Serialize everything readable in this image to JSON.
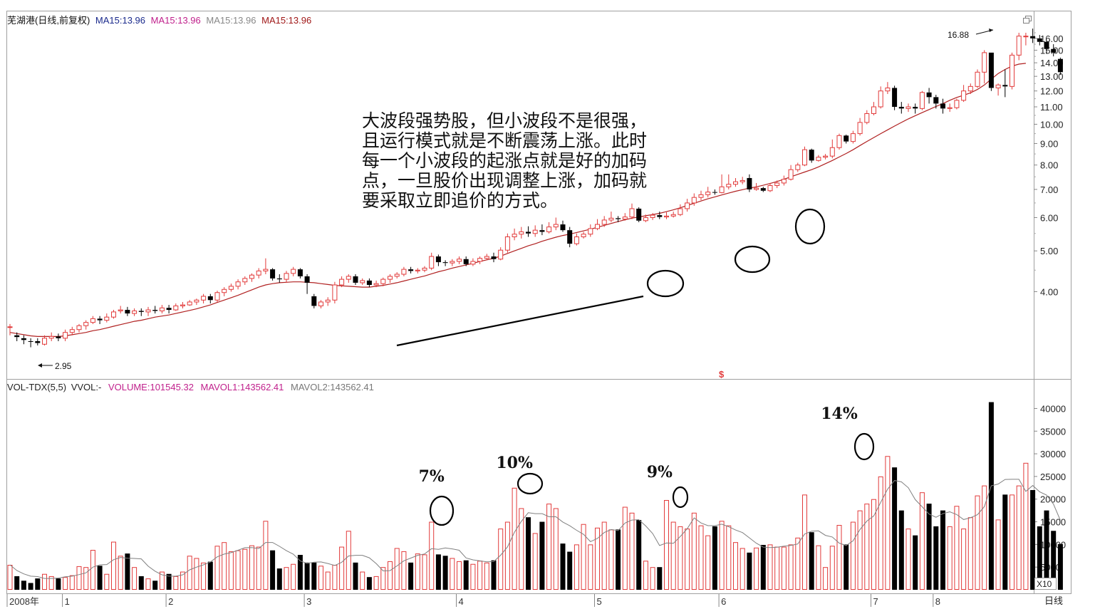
{
  "price_header": {
    "stock": "芜湖港(日线,前复权)",
    "ma_items": [
      {
        "text": "MA15:13.96",
        "color": "#1a2a8c"
      },
      {
        "text": "MA15:13.96",
        "color": "#c0208c"
      },
      {
        "text": "MA15:13.96",
        "color": "#888888"
      },
      {
        "text": "MA15:13.96",
        "color": "#a01818"
      }
    ]
  },
  "vol_header": {
    "items": [
      {
        "text": "VOL-TDX(5,5)",
        "color": "#222222"
      },
      {
        "text": "VVOL:-",
        "color": "#222222"
      },
      {
        "text": "VOLUME:101545.32",
        "color": "#c0208c"
      },
      {
        "text": "MAVOL1:143562.41",
        "color": "#c0208c"
      },
      {
        "text": "MAVOL2:143562.41",
        "color": "#777777"
      }
    ]
  },
  "annotation_text": "大波段强势股，但小波段不是很强，且运行模式就是不断震荡上涨。此时每一个小波段的起涨点就是好的加码点，一旦股价出现调整上涨，加码就要采取立即追价的方式。",
  "max_label": "16.88",
  "min_label": "2.95",
  "dollar_marker": "$",
  "vol_unit": "X10",
  "period_label": "日线",
  "colors": {
    "up": "#e23a3a",
    "down": "#000000",
    "ma": "#b02020",
    "frame": "#a0a0a0",
    "mavol": "#808080"
  },
  "chart_data": {
    "type": "candlestick",
    "price_axis": {
      "ticks": [
        4,
        5,
        6,
        7,
        8,
        9,
        10,
        11,
        12,
        13,
        14,
        15,
        16
      ],
      "labels": [
        "4.00",
        "5.00",
        "6.00",
        "7.00",
        "8.00",
        "9.00",
        "10.00",
        "11.00",
        "12.00",
        "13.00",
        "14.00",
        "15.00",
        "16.00"
      ],
      "range": [
        2.5,
        17.7
      ]
    },
    "vol_axis": {
      "ticks": [
        5000,
        10000,
        15000,
        20000,
        25000,
        30000,
        35000,
        40000
      ],
      "labels": [
        "5000",
        "10000",
        "15000",
        "20000",
        "25000",
        "30000",
        "35000",
        "40000"
      ],
      "range": [
        0,
        44000
      ]
    },
    "x_labels": [
      {
        "label": "2008年",
        "i": 0
      },
      {
        "label": "1",
        "i": 8
      },
      {
        "label": "2",
        "i": 23
      },
      {
        "label": "3",
        "i": 43
      },
      {
        "label": "4",
        "i": 65
      },
      {
        "label": "5",
        "i": 85
      },
      {
        "label": "6",
        "i": 103
      },
      {
        "label": "7",
        "i": 125
      },
      {
        "label": "8",
        "i": 134
      }
    ],
    "volume_pct_labels": [
      {
        "text": "7%",
        "i": 61
      },
      {
        "text": "10%",
        "i": 73
      },
      {
        "text": "9%",
        "i": 94
      },
      {
        "text": "14%",
        "i": 120
      }
    ],
    "candles": [
      [
        3.3,
        3.3,
        3.15,
        3.35,
        5500
      ],
      [
        3.15,
        3.12,
        3.05,
        3.2,
        3000
      ],
      [
        3.1,
        3.07,
        3.0,
        3.15,
        2000
      ],
      [
        3.05,
        3.04,
        2.95,
        3.1,
        1500
      ],
      [
        3.05,
        3.02,
        2.98,
        3.1,
        2500
      ],
      [
        3.0,
        3.1,
        2.98,
        3.15,
        3500
      ],
      [
        3.1,
        3.13,
        3.05,
        3.2,
        3000
      ],
      [
        3.13,
        3.1,
        3.05,
        3.18,
        2500
      ],
      [
        3.1,
        3.2,
        3.05,
        3.25,
        2800
      ],
      [
        3.2,
        3.25,
        3.15,
        3.3,
        3200
      ],
      [
        3.25,
        3.32,
        3.2,
        3.35,
        5200
      ],
      [
        3.32,
        3.38,
        3.25,
        3.42,
        5000
      ],
      [
        3.38,
        3.45,
        3.35,
        3.5,
        8800
      ],
      [
        3.45,
        3.42,
        3.35,
        3.5,
        5300
      ],
      [
        3.42,
        3.48,
        3.38,
        3.55,
        3500
      ],
      [
        3.48,
        3.58,
        3.45,
        3.62,
        10600
      ],
      [
        3.6,
        3.62,
        3.55,
        3.7,
        7500
      ],
      [
        3.62,
        3.55,
        3.5,
        3.68,
        8000
      ],
      [
        3.55,
        3.6,
        3.5,
        3.65,
        5000
      ],
      [
        3.6,
        3.58,
        3.5,
        3.65,
        3000
      ],
      [
        3.58,
        3.62,
        3.5,
        3.68,
        2500
      ],
      [
        3.62,
        3.6,
        3.55,
        3.7,
        2000
      ],
      [
        3.6,
        3.66,
        3.55,
        3.72,
        4000
      ],
      [
        3.66,
        3.62,
        3.55,
        3.72,
        3500
      ],
      [
        3.62,
        3.7,
        3.6,
        3.75,
        3000
      ],
      [
        3.7,
        3.72,
        3.65,
        3.78,
        4000
      ],
      [
        3.72,
        3.78,
        3.7,
        3.82,
        7500
      ],
      [
        3.78,
        3.82,
        3.72,
        3.85,
        7000
      ],
      [
        3.82,
        3.9,
        3.75,
        3.95,
        6000
      ],
      [
        3.9,
        3.82,
        3.75,
        3.95,
        6200
      ],
      [
        3.82,
        3.98,
        3.78,
        4.02,
        9700
      ],
      [
        3.98,
        4.05,
        3.9,
        4.1,
        10500
      ],
      [
        4.05,
        4.12,
        4.0,
        4.18,
        8500
      ],
      [
        4.12,
        4.22,
        4.05,
        4.28,
        8700
      ],
      [
        4.22,
        4.3,
        4.15,
        4.35,
        9000
      ],
      [
        4.3,
        4.38,
        4.22,
        4.42,
        9800
      ],
      [
        4.38,
        4.48,
        4.3,
        4.55,
        9500
      ],
      [
        4.48,
        4.52,
        4.4,
        4.8,
        15200
      ],
      [
        4.52,
        4.3,
        4.25,
        4.55,
        8700
      ],
      [
        4.3,
        4.28,
        4.2,
        4.4,
        4700
      ],
      [
        4.28,
        4.42,
        4.2,
        4.48,
        5000
      ],
      [
        4.42,
        4.52,
        4.35,
        4.58,
        5700
      ],
      [
        4.52,
        4.35,
        4.3,
        4.55,
        7700
      ],
      [
        4.35,
        4.2,
        3.95,
        4.4,
        6000
      ],
      [
        3.9,
        3.7,
        3.65,
        3.95,
        6000
      ],
      [
        3.7,
        3.78,
        3.65,
        3.82,
        5300
      ],
      [
        3.78,
        3.82,
        3.7,
        3.88,
        4000
      ],
      [
        3.82,
        4.15,
        3.75,
        4.22,
        5500
      ],
      [
        4.15,
        4.28,
        4.1,
        4.35,
        9500
      ],
      [
        4.28,
        4.35,
        4.2,
        4.4,
        13000
      ],
      [
        4.35,
        4.2,
        4.15,
        4.4,
        6000
      ],
      [
        4.2,
        4.25,
        4.15,
        4.3,
        4000
      ],
      [
        4.25,
        4.15,
        4.1,
        4.3,
        2800
      ],
      [
        4.15,
        4.18,
        4.1,
        4.25,
        3000
      ],
      [
        4.18,
        4.28,
        4.12,
        4.32,
        5000
      ],
      [
        4.28,
        4.35,
        4.2,
        4.4,
        6300
      ],
      [
        4.35,
        4.4,
        4.3,
        4.45,
        9200
      ],
      [
        4.4,
        4.52,
        4.35,
        4.58,
        8500
      ],
      [
        4.52,
        4.48,
        4.42,
        4.58,
        6000
      ],
      [
        4.48,
        4.5,
        4.42,
        4.55,
        8000
      ],
      [
        4.5,
        4.55,
        4.45,
        4.6,
        7800
      ],
      [
        4.55,
        4.85,
        4.5,
        4.95,
        15000
      ],
      [
        4.85,
        4.7,
        4.6,
        4.9,
        7800
      ],
      [
        4.7,
        4.68,
        4.6,
        4.75,
        7500
      ],
      [
        4.68,
        4.72,
        4.6,
        4.78,
        7000
      ],
      [
        4.72,
        4.78,
        4.65,
        4.85,
        6300
      ],
      [
        4.78,
        4.65,
        4.6,
        4.85,
        6500
      ],
      [
        4.65,
        4.72,
        4.6,
        4.8,
        5700
      ],
      [
        4.72,
        4.8,
        4.65,
        4.85,
        6400
      ],
      [
        4.8,
        4.85,
        4.75,
        4.92,
        6000
      ],
      [
        4.85,
        4.78,
        4.7,
        4.95,
        6500
      ],
      [
        4.78,
        5.02,
        4.75,
        5.1,
        13500
      ],
      [
        5.02,
        5.4,
        4.95,
        5.5,
        15000
      ],
      [
        5.4,
        5.48,
        5.3,
        5.65,
        22500
      ],
      [
        5.48,
        5.55,
        5.35,
        5.7,
        18000
      ],
      [
        5.55,
        5.5,
        5.4,
        5.72,
        16000
      ],
      [
        5.5,
        5.6,
        5.4,
        5.75,
        12500
      ],
      [
        5.6,
        5.55,
        5.45,
        5.78,
        15000
      ],
      [
        5.55,
        5.7,
        5.5,
        5.85,
        19000
      ],
      [
        5.7,
        5.78,
        5.6,
        6.0,
        18000
      ],
      [
        5.78,
        5.6,
        5.55,
        5.9,
        10200
      ],
      [
        5.6,
        5.2,
        5.1,
        5.7,
        8400
      ],
      [
        5.2,
        5.4,
        5.15,
        5.5,
        10000
      ],
      [
        5.4,
        5.48,
        5.35,
        5.55,
        14500
      ],
      [
        5.48,
        5.65,
        5.4,
        5.78,
        10000
      ],
      [
        5.65,
        5.78,
        5.6,
        5.95,
        13700
      ],
      [
        5.78,
        5.92,
        5.7,
        6.05,
        15000
      ],
      [
        5.92,
        5.98,
        5.85,
        6.2,
        13300
      ],
      [
        5.98,
        5.95,
        5.85,
        6.05,
        13300
      ],
      [
        5.95,
        6.02,
        5.9,
        6.15,
        18300
      ],
      [
        6.02,
        6.3,
        5.95,
        6.48,
        17000
      ],
      [
        6.3,
        5.9,
        5.85,
        6.35,
        15400
      ],
      [
        5.9,
        6.0,
        5.85,
        6.1,
        6400
      ],
      [
        6.0,
        6.08,
        5.92,
        6.15,
        5000
      ],
      [
        6.08,
        6.02,
        5.95,
        6.2,
        5000
      ],
      [
        6.02,
        6.05,
        5.95,
        6.18,
        19800
      ],
      [
        6.05,
        6.1,
        6.0,
        6.2,
        15000
      ],
      [
        6.1,
        6.3,
        6.05,
        6.45,
        14000
      ],
      [
        6.3,
        6.5,
        6.2,
        6.65,
        13500
      ],
      [
        6.5,
        6.7,
        6.4,
        6.85,
        17000
      ],
      [
        6.7,
        6.8,
        6.6,
        6.95,
        14200
      ],
      [
        6.8,
        6.9,
        6.7,
        7.1,
        12000
      ],
      [
        6.9,
        6.88,
        6.8,
        7.0,
        14000
      ],
      [
        6.88,
        7.1,
        6.85,
        7.6,
        15200
      ],
      [
        7.1,
        7.2,
        7.0,
        7.6,
        14200
      ],
      [
        7.2,
        7.3,
        7.1,
        7.45,
        10500
      ],
      [
        7.3,
        7.35,
        7.2,
        7.5,
        9200
      ],
      [
        7.45,
        7.0,
        6.9,
        7.6,
        8200
      ],
      [
        7.0,
        7.05,
        6.95,
        7.25,
        9300
      ],
      [
        7.05,
        6.95,
        6.9,
        7.1,
        9900
      ],
      [
        6.95,
        7.15,
        6.9,
        7.25,
        10000
      ],
      [
        7.15,
        7.25,
        7.05,
        7.35,
        9500
      ],
      [
        7.25,
        7.4,
        7.15,
        7.55,
        9500
      ],
      [
        7.4,
        7.8,
        7.35,
        8.0,
        10000
      ],
      [
        7.8,
        8.0,
        7.7,
        8.1,
        11500
      ],
      [
        8.0,
        8.7,
        7.95,
        8.85,
        21000
      ],
      [
        8.7,
        8.2,
        8.1,
        8.75,
        12700
      ],
      [
        8.2,
        8.35,
        8.15,
        8.45,
        9800
      ],
      [
        8.35,
        8.4,
        8.25,
        8.5,
        5000
      ],
      [
        8.4,
        8.8,
        8.3,
        9.2,
        9700
      ],
      [
        8.8,
        9.4,
        8.7,
        9.5,
        14300
      ],
      [
        9.4,
        9.1,
        9.0,
        9.45,
        10000
      ],
      [
        9.1,
        9.5,
        9.0,
        9.65,
        15000
      ],
      [
        9.5,
        10.1,
        9.4,
        10.35,
        17500
      ],
      [
        10.1,
        10.6,
        10.0,
        10.8,
        19000
      ],
      [
        10.6,
        11.0,
        10.5,
        11.3,
        20000
      ],
      [
        11.0,
        12.0,
        10.9,
        12.3,
        25000
      ],
      [
        12.0,
        12.2,
        11.8,
        12.6,
        29500
      ],
      [
        12.2,
        11.0,
        10.8,
        12.35,
        27000
      ],
      [
        11.0,
        10.9,
        10.6,
        11.3,
        17500
      ],
      [
        10.9,
        11.0,
        10.7,
        11.2,
        13500
      ],
      [
        11.0,
        10.9,
        10.6,
        11.2,
        12000
      ],
      [
        10.9,
        11.9,
        10.8,
        12.0,
        21500
      ],
      [
        11.9,
        11.6,
        11.2,
        12.2,
        19000
      ],
      [
        11.6,
        11.2,
        10.9,
        11.75,
        14000
      ],
      [
        11.2,
        10.9,
        10.6,
        11.5,
        17500
      ],
      [
        10.9,
        10.95,
        10.7,
        11.2,
        14000
      ],
      [
        10.95,
        11.4,
        10.85,
        11.5,
        18500
      ],
      [
        11.4,
        12.0,
        11.3,
        12.4,
        13500
      ],
      [
        12.0,
        12.3,
        11.8,
        12.5,
        16000
      ],
      [
        12.3,
        13.3,
        12.2,
        13.5,
        20800
      ],
      [
        13.3,
        14.8,
        12.5,
        15.0,
        23000
      ],
      [
        14.8,
        12.2,
        12.0,
        14.8,
        41400
      ],
      [
        12.2,
        12.4,
        11.7,
        12.5,
        15500
      ],
      [
        12.4,
        12.3,
        11.6,
        13.5,
        21000
      ],
      [
        12.3,
        14.6,
        12.1,
        14.8,
        21000
      ],
      [
        14.6,
        16.2,
        14.2,
        16.5,
        23000
      ],
      [
        16.2,
        16.2,
        15.4,
        16.5,
        28000
      ],
      [
        16.2,
        16.0,
        15.6,
        16.88,
        22000
      ],
      [
        16.0,
        15.7,
        15.4,
        16.3,
        14000
      ],
      [
        15.7,
        15.1,
        14.7,
        15.8,
        17500
      ],
      [
        15.1,
        14.8,
        14.5,
        15.5,
        13000
      ],
      [
        14.3,
        13.3,
        13.1,
        14.4,
        10100
      ]
    ],
    "ma": [
      3.2,
      3.18,
      3.16,
      3.14,
      3.13,
      3.13,
      3.13,
      3.13,
      3.14,
      3.16,
      3.18,
      3.2,
      3.23,
      3.25,
      3.28,
      3.31,
      3.34,
      3.37,
      3.4,
      3.42,
      3.45,
      3.48,
      3.5,
      3.52,
      3.55,
      3.58,
      3.61,
      3.64,
      3.68,
      3.72,
      3.77,
      3.82,
      3.87,
      3.92,
      3.98,
      4.04,
      4.1,
      4.15,
      4.18,
      4.2,
      4.21,
      4.22,
      4.22,
      4.21,
      4.2,
      4.18,
      4.16,
      4.14,
      4.13,
      4.12,
      4.11,
      4.1,
      4.1,
      4.12,
      4.14,
      4.17,
      4.2,
      4.24,
      4.28,
      4.32,
      4.36,
      4.41,
      4.46,
      4.5,
      4.55,
      4.59,
      4.63,
      4.67,
      4.72,
      4.76,
      4.8,
      4.86,
      4.93,
      5.0,
      5.07,
      5.14,
      5.2,
      5.27,
      5.33,
      5.39,
      5.44,
      5.48,
      5.53,
      5.58,
      5.63,
      5.69,
      5.75,
      5.81,
      5.87,
      5.93,
      5.98,
      6.02,
      6.06,
      6.1,
      6.14,
      6.2,
      6.26,
      6.33,
      6.41,
      6.49,
      6.57,
      6.65,
      6.72,
      6.79,
      6.86,
      6.93,
      6.99,
      7.05,
      7.1,
      7.16,
      7.23,
      7.31,
      7.4,
      7.5,
      7.6,
      7.7,
      7.8,
      7.92,
      8.06,
      8.2,
      8.36,
      8.52,
      8.7,
      8.9,
      9.1,
      9.3,
      9.5,
      9.7,
      9.9,
      10.1,
      10.3,
      10.48,
      10.66,
      10.84,
      11.02,
      11.2,
      11.4,
      11.58,
      11.72,
      11.88,
      12.1,
      12.4,
      12.8,
      13.2,
      13.5,
      13.75,
      13.9,
      13.96
    ]
  }
}
